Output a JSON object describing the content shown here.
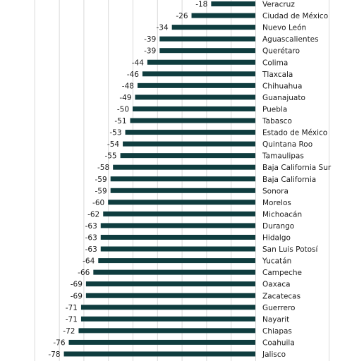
{
  "chart_data": {
    "type": "bar",
    "orientation": "horizontal",
    "bar_color": "#0f3d3f",
    "grid": true,
    "xlim": [
      -90,
      0
    ],
    "categories": [
      "Veracruz",
      "Ciudad de México",
      "Nuevo León",
      "Aguascalientes",
      "Querétaro",
      "Colima",
      "Tlaxcala",
      "Chihuahua",
      "Guanajuato",
      "Puebla",
      "Tabasco",
      "Estado de México",
      "Quintana Roo",
      "Tamaulipas",
      "Baja California Sur",
      "Baja California",
      "Sonora",
      "Morelos",
      "Michoacán",
      "Durango",
      "Hidalgo",
      "San Luis Potosí",
      "Yucatán",
      "Campeche",
      "Oaxaca",
      "Zacatecas",
      "Guerrero",
      "Nayarit",
      "Chiapas",
      "Coahuila",
      "Jalisco"
    ],
    "values": [
      -18,
      -26,
      -34,
      -39,
      -39,
      -44,
      -46,
      -48,
      -49,
      -50,
      -51,
      -53,
      -54,
      -55,
      -58,
      -59,
      -59,
      -60,
      -62,
      -63,
      -63,
      -63,
      -64,
      -66,
      -69,
      -69,
      -71,
      -71,
      -72,
      -76,
      -78
    ]
  }
}
